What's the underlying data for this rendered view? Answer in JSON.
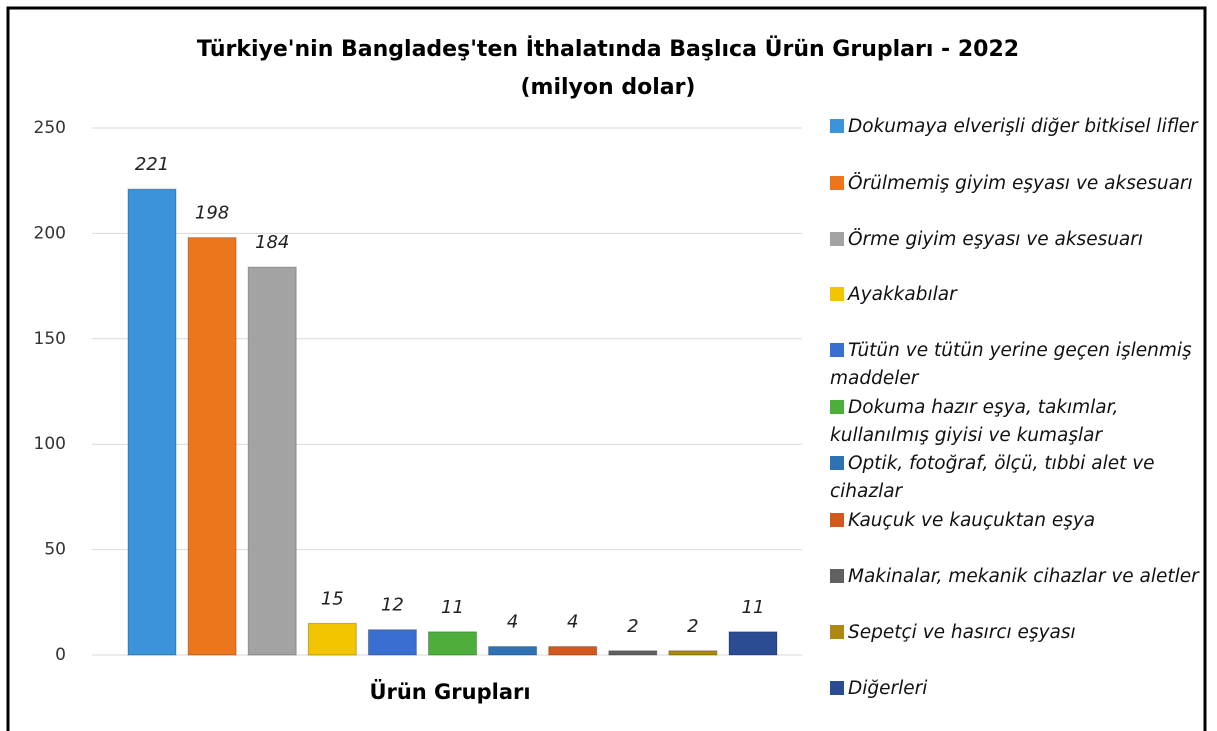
{
  "chart_data": {
    "type": "bar",
    "title": "Türkiye'nin Bangladeş'ten İthalatında Başlıca Ürün Grupları - 2022",
    "subtitle": "(milyon dolar)",
    "x_label": "Ürün Grupları",
    "categories": [
      "Dokumaya elverişli diğer bitkisel lifler",
      "Örülmemiş giyim eşyası ve aksesuarı",
      "Örme giyim eşyası ve aksesuarı",
      "Ayakkabılar",
      "Tütün ve tütün yerine geçen işlenmiş maddeler",
      "Dokuma hazır eşya, takımlar, kullanılmış giyisi ve kumaşlar",
      "Optik, fotoğraf, ölçü, tıbbi alet ve cihazlar",
      "Kauçuk ve kauçuktan eşya",
      "Makinalar, mekanik cihazlar ve aletler",
      "Sepetçi ve hasırcı eşyası",
      "Diğerleri"
    ],
    "values": [
      221,
      198,
      184,
      15,
      12,
      11,
      4,
      4,
      2,
      2,
      11
    ],
    "colors": [
      "#3b93d9",
      "#ec761d",
      "#a3a3a3",
      "#f2c500",
      "#3a6fd2",
      "#4dae3c",
      "#2e72b4",
      "#d2591d",
      "#616161",
      "#ad8912",
      "#2b4b93"
    ],
    "ylim": [
      0,
      250
    ],
    "yticks": [
      0,
      50,
      100,
      150,
      200,
      250
    ],
    "grid": true,
    "legend": "right"
  }
}
